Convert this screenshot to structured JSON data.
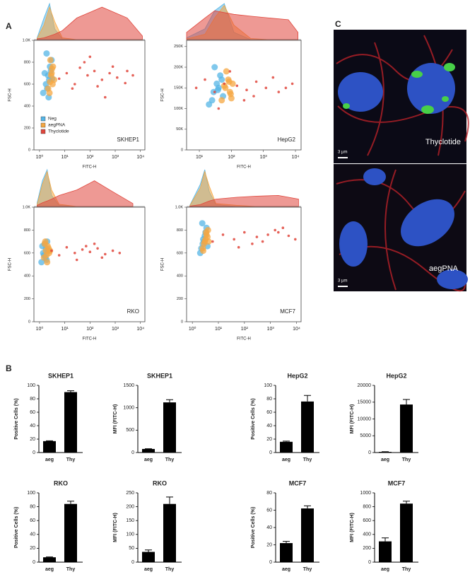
{
  "panel_labels": [
    "A",
    "B",
    "C"
  ],
  "images": [
    {
      "label": "Thyclotide",
      "scale": "3 µm"
    },
    {
      "label": "aegPNA",
      "scale": "3 µm"
    }
  ],
  "chart_data": [
    {
      "type": "scatter",
      "annotation": "SKHEP1",
      "xlabel": "FITC-H",
      "ylabel": "FSC-H",
      "xscale": "log",
      "xlim": [
        0.6,
        15000
      ],
      "xticks": [
        {
          "value": 1,
          "label": "10⁰"
        },
        {
          "value": 10,
          "label": "10¹"
        },
        {
          "value": 100,
          "label": "10²"
        },
        {
          "value": 1000,
          "label": "10³"
        },
        {
          "value": 10000,
          "label": "10⁴"
        }
      ],
      "ylim": [
        0,
        1000
      ],
      "yticks": [
        0,
        200,
        400,
        600,
        800,
        {
          "value": 1000,
          "label": "1.0K"
        }
      ],
      "legend": "lower left",
      "hist_bins": [
        0.8,
        1.5,
        2.5,
        4,
        8,
        30,
        300,
        3000,
        12000
      ],
      "series": [
        {
          "name": "Neg",
          "color": "#55b5e6",
          "x": [
            1.4,
            1.8,
            2.2,
            2.6,
            3.0,
            1.6,
            2.0,
            2.4,
            2.8,
            1.9,
            2.3,
            3.2
          ],
          "values": [
            520,
            600,
            680,
            760,
            820,
            700,
            560,
            640,
            720,
            880,
            480,
            650
          ],
          "hist": [
            5,
            60,
            100,
            30,
            2,
            0,
            0,
            0,
            0
          ]
        },
        {
          "name": "aegPNA",
          "color": "#f5a742",
          "x": [
            2.2,
            2.6,
            3.0,
            3.4,
            3.8,
            2.5,
            2.9,
            3.3,
            2.7,
            3.1
          ],
          "values": [
            560,
            620,
            700,
            760,
            640,
            520,
            680,
            600,
            820,
            740
          ],
          "hist": [
            3,
            40,
            90,
            50,
            5,
            0,
            0,
            0,
            0
          ]
        },
        {
          "name": "Thyclotide",
          "color": "#e0463c",
          "x": [
            6,
            12,
            25,
            40,
            80,
            150,
            300,
            600,
            1200,
            2500,
            5000,
            20,
            60,
            200,
            800,
            3000,
            100,
            400
          ],
          "values": [
            650,
            700,
            600,
            750,
            680,
            720,
            640,
            700,
            660,
            610,
            680,
            560,
            800,
            580,
            760,
            720,
            850,
            480
          ],
          "hist": [
            2,
            5,
            10,
            15,
            25,
            60,
            90,
            60,
            10
          ]
        }
      ]
    },
    {
      "type": "scatter",
      "annotation": "HepG2",
      "xlabel": "FITC-H",
      "ylabel": "FSC-H",
      "xscale": "log",
      "xlim": [
        4,
        15000
      ],
      "xticks": [
        {
          "value": 10,
          "label": "10¹"
        },
        {
          "value": 100,
          "label": "10²"
        },
        {
          "value": 1000,
          "label": "10³"
        },
        {
          "value": 10000,
          "label": "10⁴"
        }
      ],
      "ylim": [
        0,
        265000
      ],
      "yticks": [
        0,
        {
          "value": 50000,
          "label": "50K"
        },
        {
          "value": 100000,
          "label": "100K"
        },
        {
          "value": 150000,
          "label": "150K"
        },
        {
          "value": 200000,
          "label": "200K"
        },
        {
          "value": 250000,
          "label": "250K"
        }
      ],
      "hist_bins": [
        4,
        15,
        30,
        60,
        120,
        400,
        1500,
        6000,
        12000
      ],
      "series": [
        {
          "name": "Neg",
          "color": "#55b5e6",
          "x": [
            20,
            28,
            35,
            45,
            55,
            30,
            40,
            25,
            50,
            38
          ],
          "values": [
            110000,
            140000,
            160000,
            180000,
            130000,
            200000,
            150000,
            120000,
            170000,
            145000
          ],
          "hist": [
            5,
            30,
            80,
            100,
            20,
            0,
            0,
            0,
            0
          ]
        },
        {
          "name": "aegPNA",
          "color": "#f5a742",
          "x": [
            50,
            65,
            80,
            95,
            110,
            70,
            90,
            60,
            100,
            85
          ],
          "values": [
            120000,
            150000,
            170000,
            135000,
            160000,
            190000,
            140000,
            155000,
            125000,
            165000
          ],
          "hist": [
            2,
            15,
            60,
            95,
            40,
            3,
            0,
            0,
            0
          ]
        },
        {
          "name": "Thyclotide",
          "color": "#e0463c",
          "x": [
            8,
            15,
            30,
            60,
            150,
            300,
            600,
            1200,
            3000,
            8000,
            250,
            90,
            2000,
            500,
            40,
            5000
          ],
          "values": [
            150000,
            170000,
            140000,
            160000,
            155000,
            145000,
            165000,
            150000,
            140000,
            160000,
            120000,
            190000,
            175000,
            130000,
            100000,
            150000
          ],
          "hist": [
            20,
            60,
            80,
            75,
            70,
            65,
            60,
            55,
            20
          ]
        }
      ]
    },
    {
      "type": "scatter",
      "annotation": "RKO",
      "xlabel": "FITC-H",
      "ylabel": "FSC-H",
      "xscale": "log",
      "xlim": [
        0.6,
        15000
      ],
      "xticks": [
        {
          "value": 1,
          "label": "10⁰"
        },
        {
          "value": 10,
          "label": "10¹"
        },
        {
          "value": 100,
          "label": "10²"
        },
        {
          "value": 1000,
          "label": "10³"
        },
        {
          "value": 10000,
          "label": "10⁴"
        }
      ],
      "ylim": [
        0,
        1000
      ],
      "yticks": [
        0,
        200,
        400,
        600,
        800,
        {
          "value": 1000,
          "label": "1.0K"
        }
      ],
      "hist_bins": [
        0.8,
        1.3,
        2,
        3,
        6,
        30,
        150,
        800,
        5000
      ],
      "series": [
        {
          "name": "Neg",
          "color": "#55b5e6",
          "x": [
            1.2,
            1.5,
            1.8,
            2.0,
            1.4,
            1.7,
            2.2,
            1.6,
            1.9,
            1.3
          ],
          "values": [
            520,
            580,
            640,
            700,
            600,
            560,
            620,
            680,
            540,
            660
          ],
          "hist": [
            10,
            70,
            100,
            30,
            3,
            0,
            0,
            0,
            0
          ]
        },
        {
          "name": "aegPNA",
          "color": "#f5a742",
          "x": [
            1.5,
            1.8,
            2.1,
            2.4,
            1.7,
            2.0,
            2.3,
            1.9,
            2.6,
            1.6
          ],
          "values": [
            560,
            620,
            660,
            600,
            700,
            520,
            640,
            580,
            620,
            680
          ],
          "hist": [
            5,
            60,
            95,
            45,
            6,
            0,
            0,
            0,
            0
          ]
        },
        {
          "name": "Thyclotide",
          "color": "#e0463c",
          "x": [
            3,
            6,
            12,
            25,
            50,
            100,
            200,
            400,
            800,
            1500,
            150,
            300,
            70,
            30
          ],
          "values": [
            620,
            580,
            650,
            600,
            630,
            610,
            640,
            590,
            620,
            600,
            680,
            560,
            660,
            540
          ],
          "hist": [
            3,
            10,
            15,
            20,
            30,
            45,
            70,
            40,
            8
          ]
        }
      ]
    },
    {
      "type": "scatter",
      "annotation": "MCF7",
      "xlabel": "FITC-H",
      "ylabel": "FSC-H",
      "xscale": "log",
      "xlim": [
        0.6,
        15000
      ],
      "xticks": [
        {
          "value": 1,
          "label": "10⁰"
        },
        {
          "value": 10,
          "label": "10¹"
        },
        {
          "value": 100,
          "label": "10²"
        },
        {
          "value": 1000,
          "label": "10³"
        },
        {
          "value": 10000,
          "label": "10⁴"
        }
      ],
      "ylim": [
        0,
        1000
      ],
      "yticks": [
        0,
        200,
        400,
        600,
        800,
        {
          "value": 1000,
          "label": "1.0K"
        }
      ],
      "hist_bins": [
        0.8,
        2,
        3,
        4.5,
        8,
        50,
        300,
        2000,
        12000
      ],
      "series": [
        {
          "name": "Neg",
          "color": "#55b5e6",
          "x": [
            2,
            2.5,
            3,
            3.5,
            2.8,
            2.2,
            3.2,
            2.6,
            3.8,
            2.4
          ],
          "values": [
            600,
            680,
            750,
            820,
            700,
            640,
            780,
            720,
            660,
            860
          ],
          "hist": [
            3,
            60,
            100,
            40,
            5,
            0,
            0,
            0,
            0
          ]
        },
        {
          "name": "aegPNA",
          "color": "#f5a742",
          "x": [
            2.5,
            3,
            3.5,
            4,
            3.2,
            2.8,
            3.8,
            3.4,
            2.6,
            4.2
          ],
          "values": [
            640,
            700,
            760,
            800,
            720,
            680,
            740,
            780,
            620,
            700
          ],
          "hist": [
            2,
            50,
            95,
            55,
            8,
            3,
            0,
            0,
            0
          ]
        },
        {
          "name": "Thyclotide",
          "color": "#e0463c",
          "x": [
            6,
            15,
            40,
            100,
            300,
            800,
            2000,
            5000,
            9000,
            200,
            1500,
            60,
            3000,
            500
          ],
          "values": [
            700,
            760,
            720,
            780,
            740,
            760,
            780,
            750,
            720,
            680,
            800,
            650,
            820,
            700
          ],
          "hist": [
            1,
            5,
            10,
            15,
            20,
            25,
            28,
            30,
            20
          ]
        }
      ]
    },
    {
      "type": "bar",
      "title": "SKHEP1",
      "ylabel": "Positive Cells (%)",
      "categories": [
        "aeg",
        "Thy"
      ],
      "values": [
        17,
        90
      ],
      "errors": [
        0.5,
        2
      ],
      "ylim": [
        0,
        100
      ],
      "yticks": [
        0,
        20,
        40,
        60,
        80,
        100
      ],
      "color": "#000000"
    },
    {
      "type": "bar",
      "title": "SKHEP1",
      "ylabel": "MFI (FITC-H)",
      "categories": [
        "aeg",
        "Thy"
      ],
      "values": [
        80,
        1120
      ],
      "errors": [
        5,
        60
      ],
      "ylim": [
        0,
        1500
      ],
      "yticks": [
        0,
        500,
        1000,
        1500
      ],
      "color": "#000000"
    },
    {
      "type": "bar",
      "title": "HepG2",
      "ylabel": "Positive Cells (%)",
      "categories": [
        "aeg",
        "Thy"
      ],
      "values": [
        16,
        76
      ],
      "errors": [
        1,
        9
      ],
      "ylim": [
        0,
        100
      ],
      "yticks": [
        0,
        20,
        40,
        60,
        80,
        100
      ],
      "color": "#000000"
    },
    {
      "type": "bar",
      "title": "HepG2",
      "ylabel": "MFI (FITC-H)",
      "categories": [
        "aeg",
        "Thy"
      ],
      "values": [
        200,
        14300
      ],
      "errors": [
        50,
        1500
      ],
      "ylim": [
        0,
        20000
      ],
      "yticks": [
        0,
        5000,
        10000,
        15000,
        20000
      ],
      "color": "#000000"
    },
    {
      "type": "bar",
      "title": "RKO",
      "ylabel": "Positive Cells (%)",
      "categories": [
        "aeg",
        "Thy"
      ],
      "values": [
        7,
        84
      ],
      "errors": [
        0.5,
        4
      ],
      "ylim": [
        0,
        100
      ],
      "yticks": [
        0,
        20,
        40,
        60,
        80,
        100
      ],
      "color": "#000000"
    },
    {
      "type": "bar",
      "title": "RKO",
      "ylabel": "MFI (FITC-H)",
      "categories": [
        "aeg",
        "Thy"
      ],
      "values": [
        37,
        210
      ],
      "errors": [
        7,
        25
      ],
      "ylim": [
        0,
        250
      ],
      "yticks": [
        0,
        50,
        100,
        150,
        200,
        250
      ],
      "color": "#000000"
    },
    {
      "type": "bar",
      "title": "MCF7",
      "ylabel": "Positive Cells (%)",
      "categories": [
        "aeg",
        "Thy"
      ],
      "values": [
        22,
        62
      ],
      "errors": [
        2,
        3
      ],
      "ylim": [
        0,
        80
      ],
      "yticks": [
        0,
        20,
        40,
        60,
        80
      ],
      "color": "#000000"
    },
    {
      "type": "bar",
      "title": "MCF7",
      "ylabel": "MFI (FITC-H)",
      "categories": [
        "aeg",
        "Thy"
      ],
      "values": [
        300,
        845
      ],
      "errors": [
        50,
        35
      ],
      "ylim": [
        0,
        1000
      ],
      "yticks": [
        0,
        200,
        400,
        600,
        800,
        1000
      ],
      "color": "#000000"
    }
  ]
}
